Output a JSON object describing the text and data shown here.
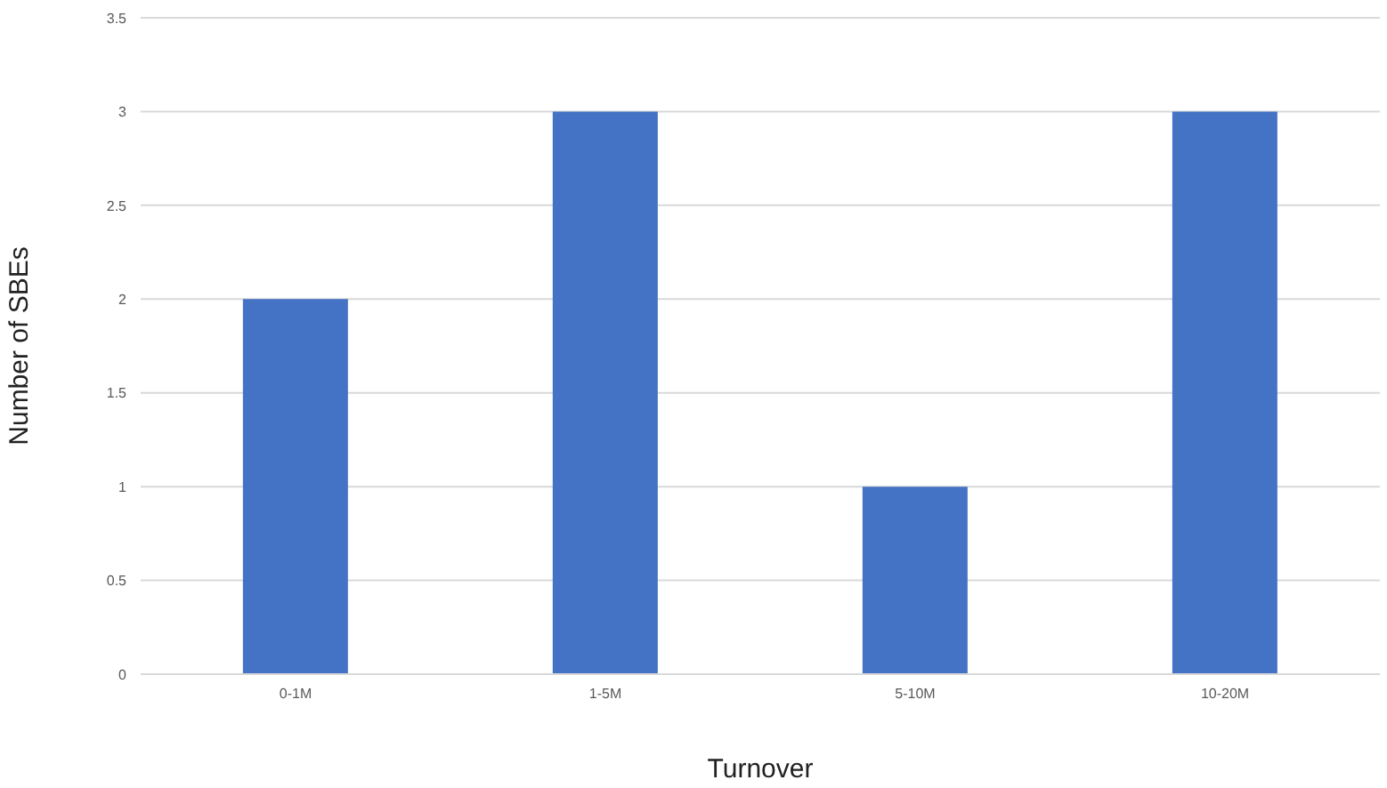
{
  "chart_data": {
    "type": "bar",
    "xlabel": "Turnover",
    "ylabel": "Number of SBEs",
    "categories": [
      "0-1M",
      "1-5M",
      "5-10M",
      "10-20M"
    ],
    "values": [
      2,
      3,
      1,
      3
    ],
    "color": "#4472c4",
    "ylim": [
      0,
      3.5
    ],
    "yticks": [
      0,
      0.5,
      1,
      1.5,
      2,
      2.5,
      3,
      3.5
    ],
    "grid": "y",
    "legend": false
  }
}
